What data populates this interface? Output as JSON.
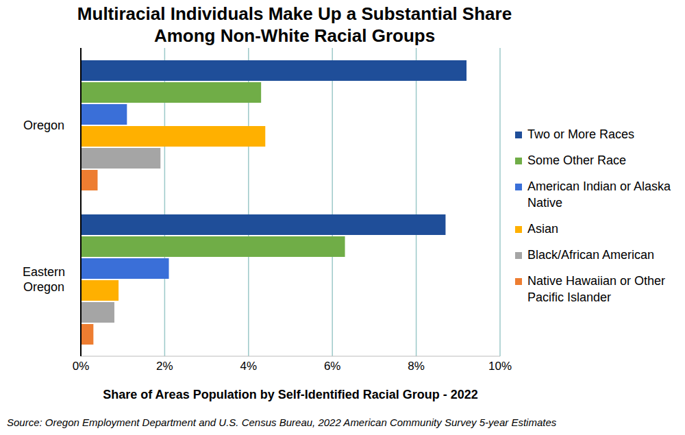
{
  "chart_data": {
    "type": "bar",
    "orientation": "horizontal",
    "title": "Multiracial Individuals Make Up a Substantial Share\nAmong Non-White Racial Groups",
    "x_label": "Share of Areas Population by Self-Identified Racial Group - 2022",
    "source": "Source: Oregon Employment Department and U.S. Census Bureau, 2022 American Community Survey 5-year Estimates",
    "categories": [
      "Oregon",
      "Eastern Oregon"
    ],
    "series": [
      {
        "name": "Two or More Races",
        "color": "#1f4e99",
        "values": [
          9.2,
          8.7
        ]
      },
      {
        "name": "Some Other Race",
        "color": "#70ad47",
        "values": [
          4.3,
          6.3
        ]
      },
      {
        "name": "American Indian or Alaska Native",
        "color": "#3a6fd8",
        "values": [
          1.1,
          2.1
        ]
      },
      {
        "name": "Asian",
        "color": "#ffb000",
        "values": [
          4.4,
          0.9
        ]
      },
      {
        "name": "Black/African American",
        "color": "#a5a5a5",
        "values": [
          1.9,
          0.8
        ]
      },
      {
        "name": "Native Hawaiian or Other Pacific Islander",
        "color": "#ed7d31",
        "values": [
          0.4,
          0.3
        ]
      }
    ],
    "xlim": [
      0,
      10
    ],
    "xticks": [
      {
        "value": 0,
        "label": "0%"
      },
      {
        "value": 2,
        "label": "2%"
      },
      {
        "value": 4,
        "label": "4%"
      },
      {
        "value": 6,
        "label": "6%"
      },
      {
        "value": 8,
        "label": "8%"
      },
      {
        "value": 10,
        "label": "10%"
      }
    ],
    "grid": true,
    "legend": "right"
  }
}
